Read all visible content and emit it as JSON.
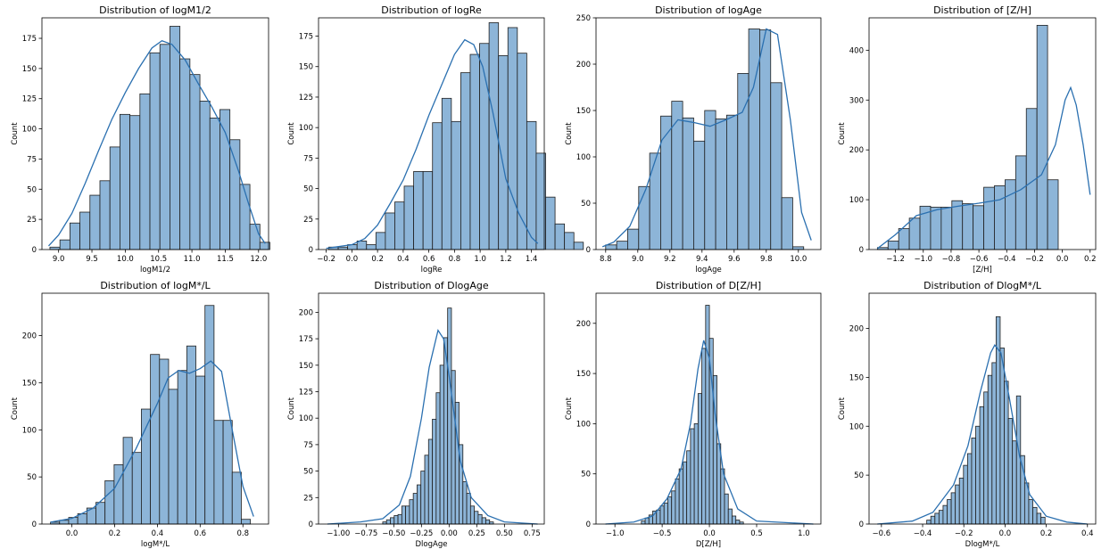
{
  "chart_data": [
    {
      "type": "bar",
      "title": "Distribution of logM1/2",
      "xlabel": "logM1/2",
      "ylabel": "Count",
      "xlim": [
        8.75,
        12.15
      ],
      "ylim": [
        0,
        192
      ],
      "xticks": [
        9.0,
        9.5,
        10.0,
        10.5,
        11.0,
        11.5,
        12.0
      ],
      "xtick_labels": [
        "9.0",
        "9.5",
        "10.0",
        "10.5",
        "11.0",
        "11.5",
        "12.0"
      ],
      "yticks": [
        0,
        25,
        50,
        75,
        100,
        125,
        150,
        175
      ],
      "ytick_labels": [
        "0",
        "25",
        "50",
        "75",
        "100",
        "125",
        "150",
        "175"
      ],
      "bin_start": 8.87,
      "bin_width": 0.15,
      "values": [
        2,
        8,
        22,
        31,
        45,
        57,
        85,
        112,
        111,
        129,
        163,
        170,
        185,
        158,
        145,
        123,
        109,
        116,
        91,
        54,
        21,
        6
      ],
      "kde": [
        [
          8.85,
          3
        ],
        [
          9.0,
          12
        ],
        [
          9.2,
          30
        ],
        [
          9.4,
          55
        ],
        [
          9.6,
          82
        ],
        [
          9.8,
          108
        ],
        [
          10.0,
          130
        ],
        [
          10.2,
          150
        ],
        [
          10.4,
          167
        ],
        [
          10.55,
          173
        ],
        [
          10.7,
          170
        ],
        [
          10.9,
          157
        ],
        [
          11.1,
          137
        ],
        [
          11.3,
          118
        ],
        [
          11.5,
          97
        ],
        [
          11.7,
          65
        ],
        [
          11.85,
          38
        ],
        [
          12.0,
          13
        ],
        [
          12.1,
          5
        ]
      ]
    },
    {
      "type": "bar",
      "title": "Distribution of logRe",
      "xlabel": "logRe",
      "ylabel": "Count",
      "xlim": [
        -0.26,
        1.5
      ],
      "ylim": [
        0,
        190
      ],
      "xticks": [
        -0.2,
        0.0,
        0.2,
        0.4,
        0.6,
        0.8,
        1.0,
        1.2,
        1.4
      ],
      "xtick_labels": [
        "−0.2",
        "0.0",
        "0.2",
        "0.4",
        "0.6",
        "0.8",
        "1.0",
        "1.2",
        "1.4"
      ],
      "yticks": [
        0,
        25,
        50,
        75,
        100,
        125,
        150,
        175
      ],
      "ytick_labels": [
        "0",
        "25",
        "50",
        "75",
        "100",
        "125",
        "150",
        "175"
      ],
      "bin_start": -0.18,
      "bin_width": 0.0735,
      "values": [
        2,
        2,
        4,
        7,
        4,
        14,
        30,
        39,
        52,
        64,
        64,
        104,
        124,
        105,
        145,
        160,
        169,
        186,
        159,
        182,
        161,
        105,
        79,
        43,
        21,
        14,
        6
      ],
      "kde": [
        [
          -0.2,
          1
        ],
        [
          0.0,
          4
        ],
        [
          0.1,
          9
        ],
        [
          0.2,
          20
        ],
        [
          0.3,
          38
        ],
        [
          0.4,
          57
        ],
        [
          0.5,
          82
        ],
        [
          0.6,
          110
        ],
        [
          0.7,
          135
        ],
        [
          0.8,
          160
        ],
        [
          0.88,
          172
        ],
        [
          0.95,
          168
        ],
        [
          1.02,
          150
        ],
        [
          1.1,
          112
        ],
        [
          1.2,
          58
        ],
        [
          1.3,
          30
        ],
        [
          1.4,
          10
        ],
        [
          1.45,
          5
        ]
      ]
    },
    {
      "type": "bar",
      "title": "Distribution of logAge",
      "xlabel": "logAge",
      "ylabel": "Count",
      "xlim": [
        8.74,
        10.14
      ],
      "ylim": [
        0,
        250
      ],
      "xticks": [
        8.8,
        9.0,
        9.2,
        9.4,
        9.6,
        9.8,
        10.0
      ],
      "xtick_labels": [
        "8.8",
        "9.0",
        "9.2",
        "9.4",
        "9.6",
        "9.8",
        "10.0"
      ],
      "yticks": [
        0,
        50,
        100,
        150,
        200,
        250
      ],
      "ytick_labels": [
        "0",
        "50",
        "100",
        "150",
        "200",
        "250"
      ],
      "bin_start": 8.8,
      "bin_width": 0.0685,
      "values": [
        5,
        9,
        22,
        68,
        104,
        144,
        160,
        142,
        117,
        150,
        141,
        145,
        190,
        238,
        237,
        180,
        56,
        3
      ],
      "kde": [
        [
          8.78,
          3
        ],
        [
          8.85,
          8
        ],
        [
          8.95,
          25
        ],
        [
          9.05,
          65
        ],
        [
          9.15,
          118
        ],
        [
          9.25,
          140
        ],
        [
          9.35,
          137
        ],
        [
          9.45,
          133
        ],
        [
          9.55,
          140
        ],
        [
          9.65,
          148
        ],
        [
          9.72,
          175
        ],
        [
          9.8,
          238
        ],
        [
          9.87,
          232
        ],
        [
          9.95,
          140
        ],
        [
          10.02,
          40
        ],
        [
          10.08,
          10
        ]
      ]
    },
    {
      "type": "bar",
      "title": "Distribution of [Z/H]",
      "xlabel": "[Z/H]",
      "ylabel": "Count",
      "xlim": [
        -1.39,
        0.24
      ],
      "ylim": [
        0,
        465
      ],
      "xticks": [
        -1.2,
        -1.0,
        -0.8,
        -0.6,
        -0.4,
        -0.2,
        0.0,
        0.2
      ],
      "xtick_labels": [
        "−1.2",
        "−1.0",
        "−0.8",
        "−0.6",
        "−0.4",
        "−0.2",
        "0.0",
        "0.2"
      ],
      "yticks": [
        0,
        100,
        200,
        300,
        400
      ],
      "ytick_labels": [
        "0",
        "100",
        "200",
        "300",
        "400"
      ],
      "bin_start": -1.33,
      "bin_width": 0.0765,
      "values": [
        4,
        17,
        42,
        63,
        87,
        85,
        85,
        98,
        92,
        88,
        125,
        128,
        140,
        188,
        283,
        450,
        140
      ],
      "kde": [
        [
          -1.33,
          2
        ],
        [
          -1.2,
          30
        ],
        [
          -1.05,
          68
        ],
        [
          -0.9,
          80
        ],
        [
          -0.75,
          87
        ],
        [
          -0.6,
          93
        ],
        [
          -0.45,
          100
        ],
        [
          -0.3,
          120
        ],
        [
          -0.15,
          150
        ],
        [
          -0.05,
          210
        ],
        [
          0.02,
          300
        ],
        [
          0.06,
          325
        ],
        [
          0.1,
          290
        ],
        [
          0.15,
          210
        ],
        [
          0.2,
          110
        ]
      ]
    },
    {
      "type": "bar",
      "title": "Distribution of logM*/L",
      "xlabel": "logM*/L",
      "ylabel": "Count",
      "xlim": [
        -0.14,
        0.92
      ],
      "ylim": [
        0,
        245
      ],
      "xticks": [
        0.0,
        0.2,
        0.4,
        0.6,
        0.8
      ],
      "xtick_labels": [
        "0.0",
        "0.2",
        "0.4",
        "0.6",
        "0.8"
      ],
      "yticks": [
        0,
        50,
        100,
        150,
        200
      ],
      "ytick_labels": [
        "0",
        "50",
        "100",
        "150",
        "200"
      ],
      "bin_start": -0.1,
      "bin_width": 0.0425,
      "values": [
        2,
        4,
        7,
        11,
        17,
        23,
        46,
        63,
        92,
        76,
        122,
        180,
        175,
        143,
        163,
        189,
        157,
        232,
        110,
        110,
        55,
        5
      ],
      "kde": [
        [
          -0.1,
          2
        ],
        [
          0.0,
          6
        ],
        [
          0.1,
          17
        ],
        [
          0.2,
          38
        ],
        [
          0.3,
          80
        ],
        [
          0.4,
          128
        ],
        [
          0.45,
          155
        ],
        [
          0.5,
          163
        ],
        [
          0.55,
          160
        ],
        [
          0.6,
          165
        ],
        [
          0.65,
          173
        ],
        [
          0.7,
          162
        ],
        [
          0.75,
          100
        ],
        [
          0.8,
          40
        ],
        [
          0.85,
          8
        ]
      ]
    },
    {
      "type": "bar",
      "title": "Distribution of DlogAge",
      "xlabel": "DlogAge",
      "ylabel": "Count",
      "xlim": [
        -1.18,
        0.86
      ],
      "ylim": [
        0,
        218
      ],
      "xticks": [
        -1.0,
        -0.75,
        -0.5,
        -0.25,
        0.0,
        0.25,
        0.5,
        0.75
      ],
      "xtick_labels": [
        "−1.00",
        "−0.75",
        "−0.50",
        "−0.25",
        "0.00",
        "0.25",
        "0.50",
        "0.75"
      ],
      "yticks": [
        0,
        25,
        50,
        75,
        100,
        125,
        150,
        175,
        200
      ],
      "ytick_labels": [
        "0",
        "25",
        "50",
        "75",
        "100",
        "125",
        "150",
        "175",
        "200"
      ],
      "bin_start": -0.6,
      "bin_width": 0.0345,
      "values": [
        2,
        4,
        6,
        8,
        9,
        17,
        17,
        23,
        29,
        37,
        50,
        65,
        80,
        99,
        124,
        150,
        176,
        204,
        145,
        115,
        75,
        40,
        29,
        17,
        12,
        9,
        6,
        4,
        2
      ],
      "kde": [
        [
          -1.1,
          0
        ],
        [
          -0.8,
          2
        ],
        [
          -0.6,
          5
        ],
        [
          -0.45,
          18
        ],
        [
          -0.35,
          45
        ],
        [
          -0.25,
          100
        ],
        [
          -0.18,
          148
        ],
        [
          -0.1,
          183
        ],
        [
          -0.05,
          175
        ],
        [
          0.0,
          140
        ],
        [
          0.05,
          100
        ],
        [
          0.1,
          60
        ],
        [
          0.2,
          25
        ],
        [
          0.35,
          8
        ],
        [
          0.5,
          2
        ],
        [
          0.8,
          0
        ]
      ]
    },
    {
      "type": "bar",
      "title": "Distribution of D[Z/H]",
      "xlabel": "D[Z/H]",
      "ylabel": "Count",
      "xlim": [
        -1.2,
        1.18
      ],
      "ylim": [
        0,
        230
      ],
      "xticks": [
        -1.0,
        -0.5,
        0.0,
        0.5,
        1.0
      ],
      "xtick_labels": [
        "−1.0",
        "−0.5",
        "0.0",
        "0.5",
        "1.0"
      ],
      "yticks": [
        0,
        50,
        100,
        150,
        200
      ],
      "ytick_labels": [
        "0",
        "50",
        "100",
        "150",
        "200"
      ],
      "bin_start": -0.72,
      "bin_width": 0.04,
      "values": [
        3,
        6,
        9,
        13,
        14,
        18,
        21,
        27,
        33,
        45,
        55,
        62,
        73,
        95,
        100,
        130,
        175,
        218,
        185,
        148,
        80,
        55,
        30,
        15,
        8,
        4,
        2
      ],
      "kde": [
        [
          -1.1,
          0
        ],
        [
          -0.8,
          2
        ],
        [
          -0.6,
          8
        ],
        [
          -0.45,
          25
        ],
        [
          -0.3,
          55
        ],
        [
          -0.2,
          100
        ],
        [
          -0.12,
          155
        ],
        [
          -0.06,
          183
        ],
        [
          0.0,
          165
        ],
        [
          0.06,
          110
        ],
        [
          0.15,
          50
        ],
        [
          0.3,
          15
        ],
        [
          0.5,
          3
        ],
        [
          1.1,
          0
        ]
      ]
    },
    {
      "type": "bar",
      "title": "Distribution of DlogM*/L",
      "xlabel": "DlogM*/L",
      "ylabel": "Count",
      "xlim": [
        -0.66,
        0.44
      ],
      "ylim": [
        0,
        236
      ],
      "xticks": [
        -0.6,
        -0.4,
        -0.2,
        0.0,
        0.2,
        0.4
      ],
      "xtick_labels": [
        "−0.6",
        "−0.4",
        "−0.2",
        "0.0",
        "0.2",
        "0.4"
      ],
      "yticks": [
        0,
        50,
        100,
        150,
        200
      ],
      "ytick_labels": [
        "0",
        "50",
        "100",
        "150",
        "200"
      ],
      "bin_start": -0.38,
      "bin_width": 0.0198,
      "values": [
        4,
        8,
        11,
        14,
        19,
        25,
        32,
        40,
        47,
        60,
        72,
        88,
        100,
        120,
        135,
        152,
        165,
        212,
        180,
        146,
        108,
        85,
        131,
        70,
        42,
        25,
        17,
        11,
        7
      ],
      "kde": [
        [
          -0.62,
          0
        ],
        [
          -0.45,
          3
        ],
        [
          -0.35,
          12
        ],
        [
          -0.25,
          40
        ],
        [
          -0.18,
          80
        ],
        [
          -0.12,
          135
        ],
        [
          -0.07,
          175
        ],
        [
          -0.05,
          183
        ],
        [
          -0.02,
          175
        ],
        [
          0.02,
          130
        ],
        [
          0.07,
          70
        ],
        [
          0.12,
          30
        ],
        [
          0.2,
          8
        ],
        [
          0.3,
          2
        ],
        [
          0.4,
          0
        ]
      ]
    }
  ]
}
